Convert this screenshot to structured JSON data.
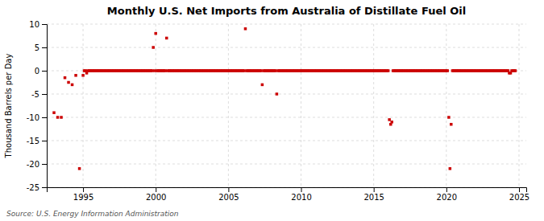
{
  "chart_data": {
    "type": "scatter",
    "title": "Monthly U.S. Net Imports from Australia of Distillate Fuel Oil",
    "ylabel": "Thousand Barrels per Day",
    "source": "Source: U.S. Energy Information Administration",
    "xlim": [
      1992.5,
      2025.5
    ],
    "ylim": [
      -25,
      10
    ],
    "yticks": [
      -25,
      -20,
      -15,
      -10,
      -5,
      0,
      5,
      10
    ],
    "xticks": [
      1995,
      2000,
      2005,
      2010,
      2015,
      2020,
      2025
    ],
    "grid": true,
    "color": "#cc0000",
    "marker": "square",
    "x": [
      1993.0,
      1993.25,
      1993.5,
      1993.75,
      1994.0,
      1994.25,
      1994.5,
      1994.75,
      1995.0,
      1995.08,
      1995.17,
      1995.25,
      1995.33,
      1995.42,
      1995.5,
      1995.58,
      1995.67,
      1995.75,
      1995.83,
      1995.92,
      1996.0,
      1996.08,
      1996.17,
      1996.25,
      1996.33,
      1996.42,
      1996.5,
      1996.58,
      1996.67,
      1996.75,
      1996.83,
      1996.92,
      1997.0,
      1997.08,
      1997.17,
      1997.25,
      1997.33,
      1997.42,
      1997.5,
      1997.58,
      1997.67,
      1997.75,
      1997.83,
      1997.92,
      1998.0,
      1998.08,
      1998.17,
      1998.25,
      1998.33,
      1998.42,
      1998.5,
      1998.58,
      1998.67,
      1998.75,
      1998.83,
      1998.92,
      1999.0,
      1999.08,
      1999.17,
      1999.25,
      1999.33,
      1999.42,
      1999.5,
      1999.58,
      1999.67,
      1999.75,
      1999.83,
      1999.92,
      2000.0,
      2000.08,
      2000.17,
      2000.25,
      2000.33,
      2000.42,
      2000.5,
      2000.58,
      2000.67,
      2000.75,
      2000.83,
      2000.92,
      2001.0,
      2001.08,
      2001.17,
      2001.25,
      2001.33,
      2001.42,
      2001.5,
      2001.58,
      2001.67,
      2001.75,
      2001.83,
      2001.92,
      2002.0,
      2002.08,
      2002.17,
      2002.25,
      2002.33,
      2002.42,
      2002.5,
      2002.58,
      2002.67,
      2002.75,
      2002.83,
      2002.92,
      2003.0,
      2003.08,
      2003.17,
      2003.25,
      2003.33,
      2003.42,
      2003.5,
      2003.58,
      2003.67,
      2003.75,
      2003.83,
      2003.92,
      2004.0,
      2004.08,
      2004.17,
      2004.25,
      2004.33,
      2004.42,
      2004.5,
      2004.58,
      2004.67,
      2004.75,
      2004.83,
      2004.92,
      2005.0,
      2005.08,
      2005.17,
      2005.25,
      2005.33,
      2005.42,
      2005.5,
      2005.58,
      2005.67,
      2005.75,
      2005.83,
      2005.92,
      2006.0,
      2006.08,
      2006.17,
      2006.25,
      2006.33,
      2006.42,
      2006.5,
      2006.58,
      2006.67,
      2006.75,
      2006.83,
      2006.92,
      2007.0,
      2007.08,
      2007.17,
      2007.25,
      2007.33,
      2007.42,
      2007.5,
      2007.58,
      2007.67,
      2007.75,
      2007.83,
      2007.92,
      2008.0,
      2008.08,
      2008.17,
      2008.25,
      2008.33,
      2008.42,
      2008.5,
      2008.58,
      2008.67,
      2008.75,
      2008.83,
      2008.92,
      2009.0,
      2009.08,
      2009.17,
      2009.25,
      2009.33,
      2009.42,
      2009.5,
      2009.58,
      2009.67,
      2009.75,
      2009.83,
      2009.92,
      2010.0,
      2010.08,
      2010.17,
      2010.25,
      2010.33,
      2010.42,
      2010.5,
      2010.58,
      2010.67,
      2010.75,
      2010.83,
      2010.92,
      2011.0,
      2011.08,
      2011.17,
      2011.25,
      2011.33,
      2011.42,
      2011.5,
      2011.58,
      2011.67,
      2011.75,
      2011.83,
      2011.92,
      2012.0,
      2012.08,
      2012.17,
      2012.25,
      2012.33,
      2012.42,
      2012.5,
      2012.58,
      2012.67,
      2012.75,
      2012.83,
      2012.92,
      2013.0,
      2013.08,
      2013.17,
      2013.25,
      2013.33,
      2013.42,
      2013.5,
      2013.58,
      2013.67,
      2013.75,
      2013.83,
      2013.92,
      2014.0,
      2014.08,
      2014.17,
      2014.25,
      2014.33,
      2014.42,
      2014.5,
      2014.58,
      2014.67,
      2014.75,
      2014.83,
      2014.92,
      2015.0,
      2015.08,
      2015.17,
      2015.25,
      2015.33,
      2015.42,
      2015.5,
      2015.58,
      2015.67,
      2015.75,
      2015.83,
      2015.92,
      2016.0,
      2016.08,
      2016.17,
      2016.25,
      2016.33,
      2016.42,
      2016.5,
      2016.58,
      2016.67,
      2016.75,
      2016.83,
      2016.92,
      2017.0,
      2017.08,
      2017.17,
      2017.25,
      2017.33,
      2017.42,
      2017.5,
      2017.58,
      2017.67,
      2017.75,
      2017.83,
      2017.92,
      2018.0,
      2018.08,
      2018.17,
      2018.25,
      2018.33,
      2018.42,
      2018.5,
      2018.58,
      2018.67,
      2018.75,
      2018.83,
      2018.92,
      2019.0,
      2019.08,
      2019.17,
      2019.25,
      2019.33,
      2019.42,
      2019.5,
      2019.58,
      2019.67,
      2019.75,
      2019.83,
      2019.92,
      2020.0,
      2020.08,
      2020.17,
      2020.25,
      2020.33,
      2020.42,
      2020.5,
      2020.58,
      2020.67,
      2020.75,
      2020.83,
      2020.92,
      2021.0,
      2021.08,
      2021.17,
      2021.25,
      2021.33,
      2021.42,
      2021.5,
      2021.58,
      2021.67,
      2021.75,
      2021.83,
      2021.92,
      2022.0,
      2022.08,
      2022.17,
      2022.25,
      2022.33,
      2022.42,
      2022.5,
      2022.58,
      2022.67,
      2022.75,
      2022.83,
      2022.92,
      2023.0,
      2023.08,
      2023.17,
      2023.25,
      2023.33,
      2023.42,
      2023.5,
      2023.58,
      2023.67,
      2023.75,
      2023.83,
      2023.92,
      2024.0,
      2024.08,
      2024.17,
      2024.25,
      2024.33,
      2024.42,
      2024.5,
      2024.58,
      2024.67,
      2024.75
    ],
    "values": [
      -9.0,
      -10.0,
      -10.0,
      -1.5,
      -2.5,
      -3.0,
      -1.0,
      -21.0,
      -1.0,
      0.0,
      0.0,
      -0.5,
      0.0,
      0.0,
      0.0,
      0.0,
      0.0,
      0.0,
      0.0,
      0.0,
      0.0,
      0.0,
      0.0,
      0.0,
      0.0,
      0.0,
      0.0,
      0.0,
      0.0,
      0.0,
      0.0,
      0.0,
      0.0,
      0.0,
      0.0,
      0.0,
      0.0,
      0.0,
      0.0,
      0.0,
      0.0,
      0.0,
      0.0,
      0.0,
      0.0,
      0.0,
      0.0,
      0.0,
      0.0,
      0.0,
      0.0,
      0.0,
      0.0,
      0.0,
      0.0,
      0.0,
      0.0,
      0.0,
      0.0,
      0.0,
      0.0,
      0.0,
      0.0,
      0.0,
      0.0,
      0.0,
      5.0,
      0.0,
      8.0,
      0.0,
      0.0,
      0.0,
      0.0,
      0.0,
      0.0,
      0.0,
      0.0,
      7.0,
      0.0,
      0.0,
      0.0,
      0.0,
      0.0,
      0.0,
      0.0,
      0.0,
      0.0,
      0.0,
      0.0,
      0.0,
      0.0,
      0.0,
      0.0,
      0.0,
      0.0,
      0.0,
      0.0,
      0.0,
      0.0,
      0.0,
      0.0,
      0.0,
      0.0,
      0.0,
      0.0,
      0.0,
      0.0,
      0.0,
      0.0,
      0.0,
      0.0,
      0.0,
      0.0,
      0.0,
      0.0,
      0.0,
      0.0,
      0.0,
      0.0,
      0.0,
      0.0,
      0.0,
      0.0,
      0.0,
      0.0,
      0.0,
      0.0,
      0.0,
      0.0,
      0.0,
      0.0,
      0.0,
      0.0,
      0.0,
      0.0,
      0.0,
      0.0,
      0.0,
      0.0,
      0.0,
      0.0,
      0.0,
      9.0,
      0.0,
      0.0,
      0.0,
      0.0,
      0.0,
      0.0,
      0.0,
      0.0,
      0.0,
      0.0,
      0.0,
      0.0,
      0.0,
      -3.0,
      0.0,
      0.0,
      0.0,
      0.0,
      0.0,
      0.0,
      0.0,
      0.0,
      0.0,
      0.0,
      0.0,
      -5.0,
      0.0,
      0.0,
      0.0,
      0.0,
      0.0,
      0.0,
      0.0,
      0.0,
      0.0,
      0.0,
      0.0,
      0.0,
      0.0,
      0.0,
      0.0,
      0.0,
      0.0,
      0.0,
      0.0,
      0.0,
      0.0,
      0.0,
      0.0,
      0.0,
      0.0,
      0.0,
      0.0,
      0.0,
      0.0,
      0.0,
      0.0,
      0.0,
      0.0,
      0.0,
      0.0,
      0.0,
      0.0,
      0.0,
      0.0,
      0.0,
      0.0,
      0.0,
      0.0,
      0.0,
      0.0,
      0.0,
      0.0,
      0.0,
      0.0,
      0.0,
      0.0,
      0.0,
      0.0,
      0.0,
      0.0,
      0.0,
      0.0,
      0.0,
      0.0,
      0.0,
      0.0,
      0.0,
      0.0,
      0.0,
      0.0,
      0.0,
      0.0,
      0.0,
      0.0,
      0.0,
      0.0,
      0.0,
      0.0,
      0.0,
      0.0,
      0.0,
      0.0,
      0.0,
      0.0,
      0.0,
      0.0,
      0.0,
      0.0,
      0.0,
      0.0,
      0.0,
      0.0,
      0.0,
      0.0,
      0.0,
      0.0,
      0.0,
      -10.5,
      -11.5,
      -11.0,
      0.0,
      0.0,
      0.0,
      0.0,
      0.0,
      0.0,
      0.0,
      0.0,
      0.0,
      0.0,
      0.0,
      0.0,
      0.0,
      0.0,
      0.0,
      0.0,
      0.0,
      0.0,
      0.0,
      0.0,
      0.0,
      0.0,
      0.0,
      0.0,
      0.0,
      0.0,
      0.0,
      0.0,
      0.0,
      0.0,
      0.0,
      0.0,
      0.0,
      0.0,
      0.0,
      0.0,
      0.0,
      0.0,
      0.0,
      0.0,
      0.0,
      0.0,
      0.0,
      0.0,
      0.0,
      0.0,
      -10.0,
      -21.0,
      -11.5,
      0.0,
      0.0,
      0.0,
      0.0,
      0.0,
      0.0,
      0.0,
      0.0,
      0.0,
      0.0,
      0.0,
      0.0,
      0.0,
      0.0,
      0.0,
      0.0,
      0.0,
      0.0,
      0.0,
      0.0,
      0.0,
      0.0,
      0.0,
      0.0,
      0.0,
      0.0,
      0.0,
      0.0,
      0.0,
      0.0,
      0.0,
      0.0,
      0.0,
      0.0,
      0.0,
      0.0,
      0.0,
      0.0,
      0.0,
      0.0,
      0.0,
      0.0,
      0.0,
      0.0,
      0.0,
      0.0,
      0.0,
      -0.5,
      -0.5,
      0.0,
      0.0,
      0.0,
      0.0
    ]
  }
}
